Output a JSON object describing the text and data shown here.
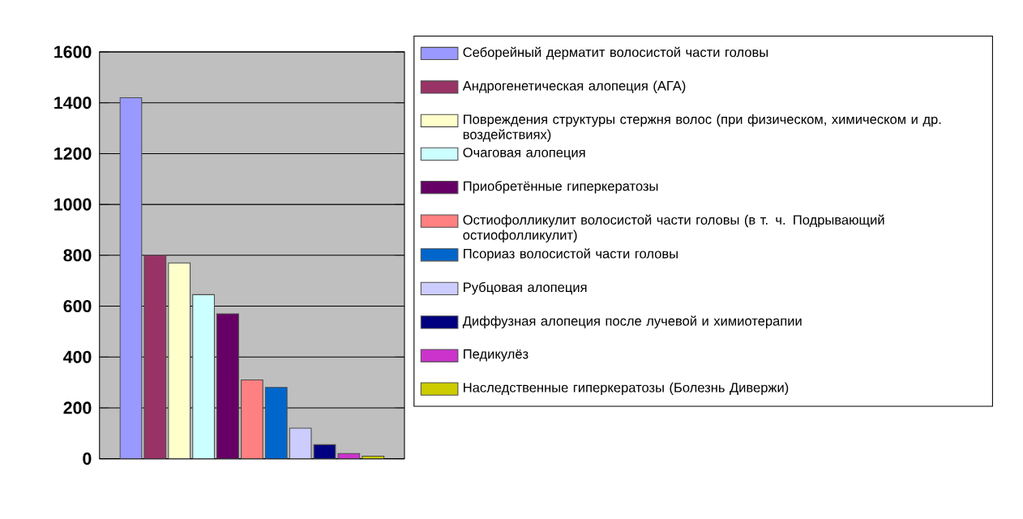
{
  "chart_data": {
    "type": "bar",
    "categories": [
      null
    ],
    "ylim": [
      0,
      1600
    ],
    "yticks": [
      0,
      200,
      400,
      600,
      800,
      1000,
      1200,
      1400,
      1600
    ],
    "grid": "y",
    "legend": "right",
    "series": [
      {
        "name": "Себорейный дерматит волосистой части головы",
        "color": "#9999ff",
        "values": [
          1420
        ]
      },
      {
        "name": "Андрогенетическая алопеция (АГА)",
        "color": "#993366",
        "values": [
          800
        ]
      },
      {
        "name": "Повреждения структуры стержня волос (при физическом, химическом и др. воздействиях)",
        "color": "#ffffcc",
        "values": [
          770
        ]
      },
      {
        "name": "Очаговая алопеция",
        "color": "#ccffff",
        "values": [
          645
        ]
      },
      {
        "name": "Приобретённые гиперкератозы",
        "color": "#660066",
        "values": [
          570
        ]
      },
      {
        "name": "Остиофолликулит волосистой части головы (в т. ч. Подрывающий остиофолликулит)",
        "color": "#ff8080",
        "values": [
          310
        ]
      },
      {
        "name": "Псориаз волосистой части головы",
        "color": "#0066cc",
        "values": [
          280
        ]
      },
      {
        "name": "Рубцовая алопеция",
        "color": "#ccccff",
        "values": [
          120
        ]
      },
      {
        "name": "Диффузная алопеция после лучевой и химиотерапии",
        "color": "#000080",
        "values": [
          55
        ]
      },
      {
        "name": "Педикулёз",
        "color": "#cc33cc",
        "values": [
          20
        ]
      },
      {
        "name": "Наследственные гиперкератозы (Болезнь Дивержи)",
        "color": "#cccc00",
        "values": [
          10
        ]
      }
    ]
  }
}
